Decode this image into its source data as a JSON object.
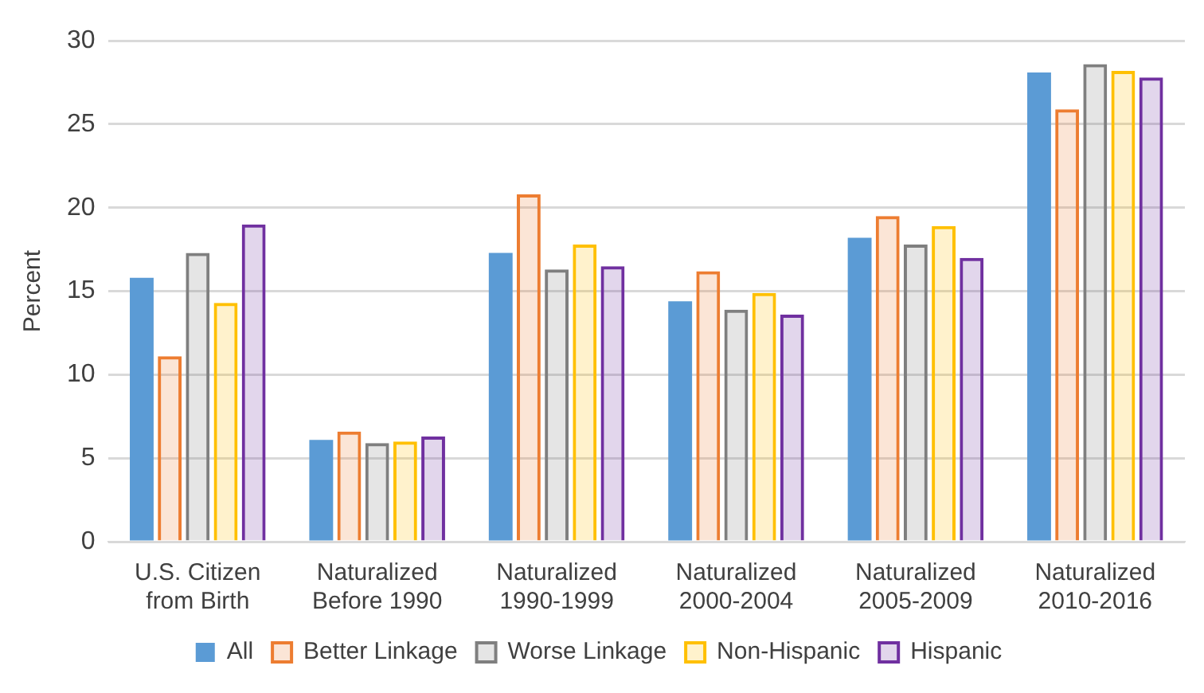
{
  "chart_data": {
    "type": "bar",
    "ylabel": "Percent",
    "categories": [
      "U.S. Citizen from Birth",
      "Naturalized Before 1990",
      "Naturalized 1990-1999",
      "Naturalized 2000-2004",
      "Naturalized 2005-2009",
      "Naturalized 2010-2016"
    ],
    "series": [
      {
        "name": "All",
        "color": "#5b9bd5",
        "values": [
          15.8,
          6.1,
          17.3,
          14.4,
          18.2,
          28.1
        ]
      },
      {
        "name": "Better Linkage",
        "color": "#ed7d31",
        "values": [
          11.1,
          6.6,
          20.8,
          16.2,
          19.5,
          25.9
        ]
      },
      {
        "name": "Worse Linkage",
        "color": "#7f7f7f",
        "values": [
          17.3,
          5.9,
          16.3,
          13.9,
          17.8,
          28.6
        ]
      },
      {
        "name": "Non-Hispanic",
        "color": "#ffc000",
        "values": [
          14.3,
          6.0,
          17.8,
          14.9,
          18.9,
          28.2
        ]
      },
      {
        "name": "Hispanic",
        "color": "#7030a0",
        "values": [
          19.0,
          6.3,
          16.5,
          13.6,
          17.0,
          27.8
        ]
      }
    ],
    "ylim": [
      0,
      30
    ],
    "yticks": [
      0,
      5,
      10,
      15,
      20,
      25,
      30
    ],
    "grid": "y",
    "legend": "bottom"
  }
}
